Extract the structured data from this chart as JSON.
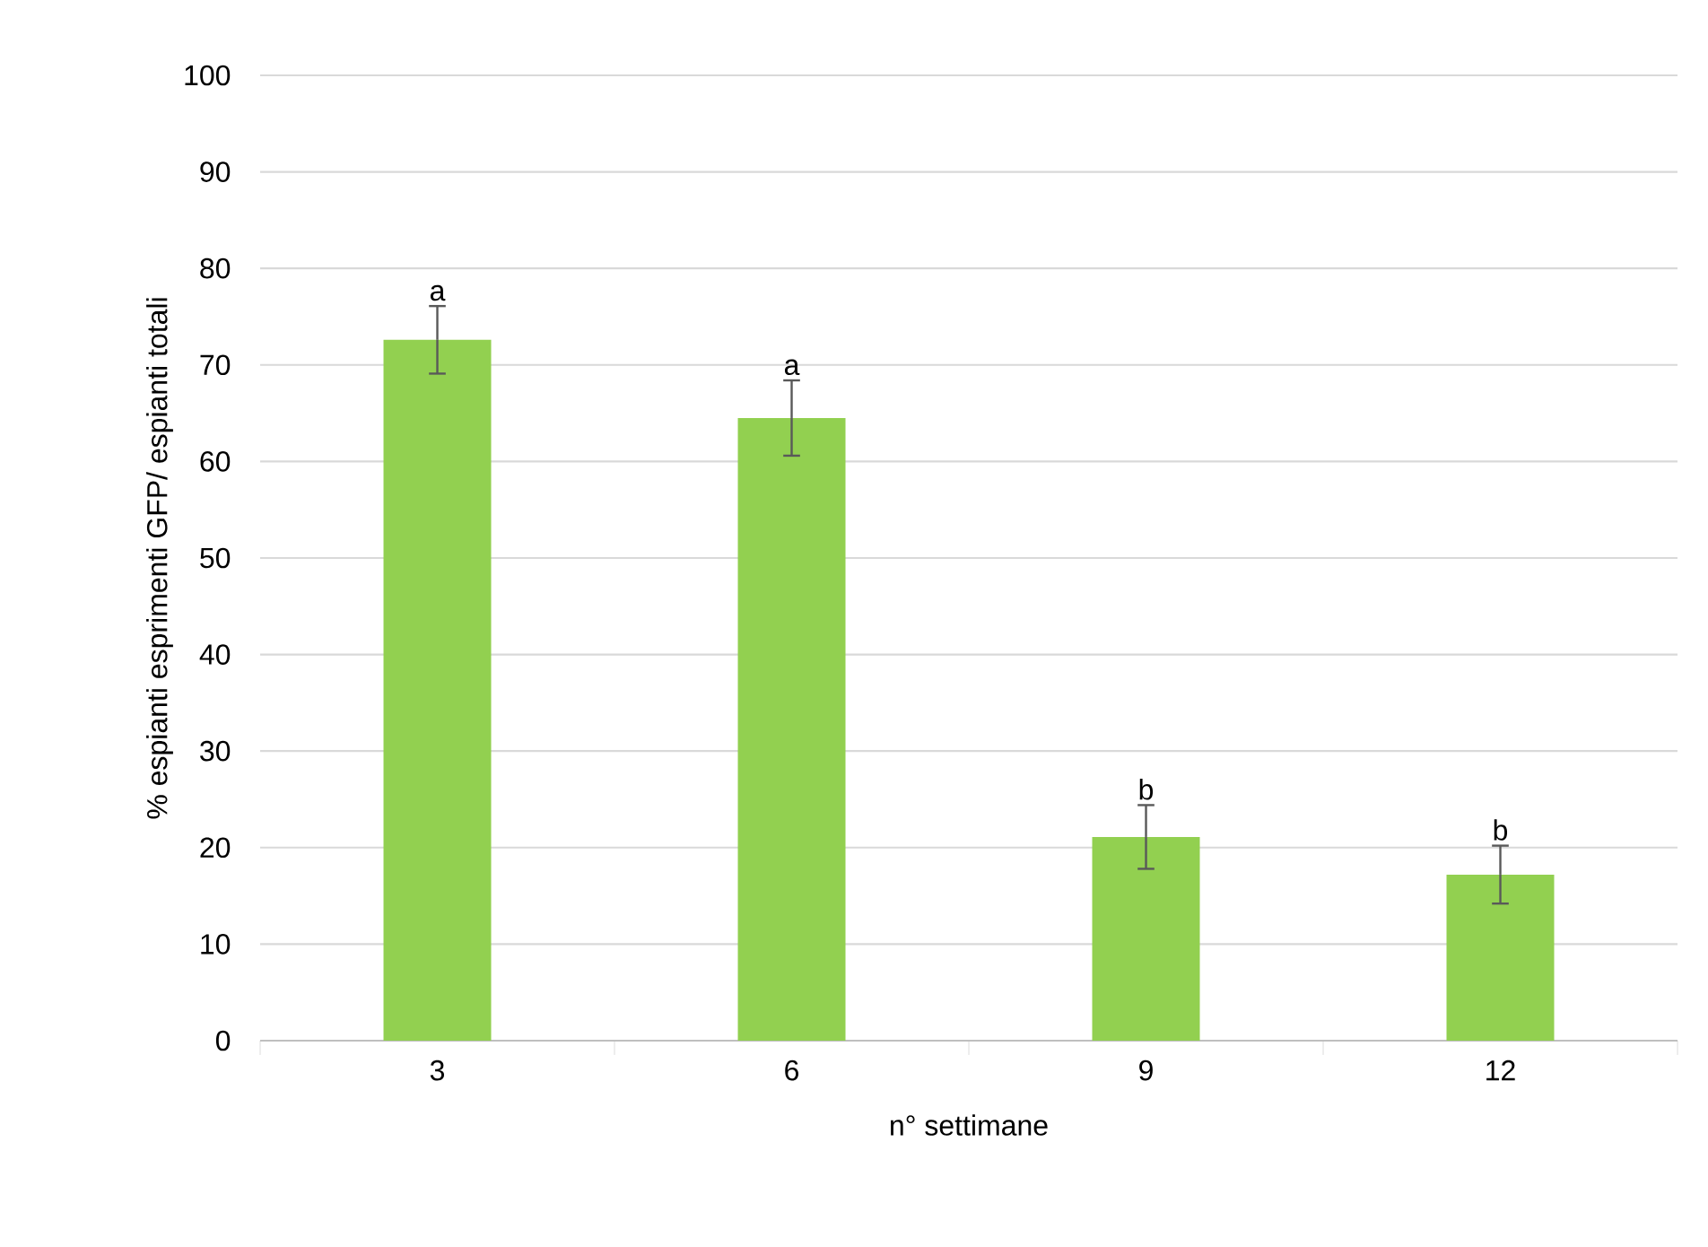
{
  "chart_data": {
    "type": "bar",
    "xlabel": "n° settimane",
    "ylabel": "% espianti esprimenti GFP/ espianti totali",
    "categories": [
      "3",
      "6",
      "9",
      "12"
    ],
    "values": [
      72.6,
      64.5,
      21.1,
      17.2
    ],
    "errors": [
      3.5,
      3.9,
      3.3,
      3.0
    ],
    "color": "#92d050",
    "ylim": [
      0,
      100
    ],
    "yticks": [
      0,
      10,
      20,
      30,
      40,
      50,
      60,
      70,
      80,
      90,
      100
    ],
    "grid": "y",
    "annotations": [
      {
        "text": "a",
        "x": "3",
        "y": 76.1
      },
      {
        "text": "a",
        "x": "6",
        "y": 68.4
      },
      {
        "text": "b",
        "x": "9",
        "y": 24.4
      },
      {
        "text": "b",
        "x": "12",
        "y": 20.2
      }
    ]
  }
}
